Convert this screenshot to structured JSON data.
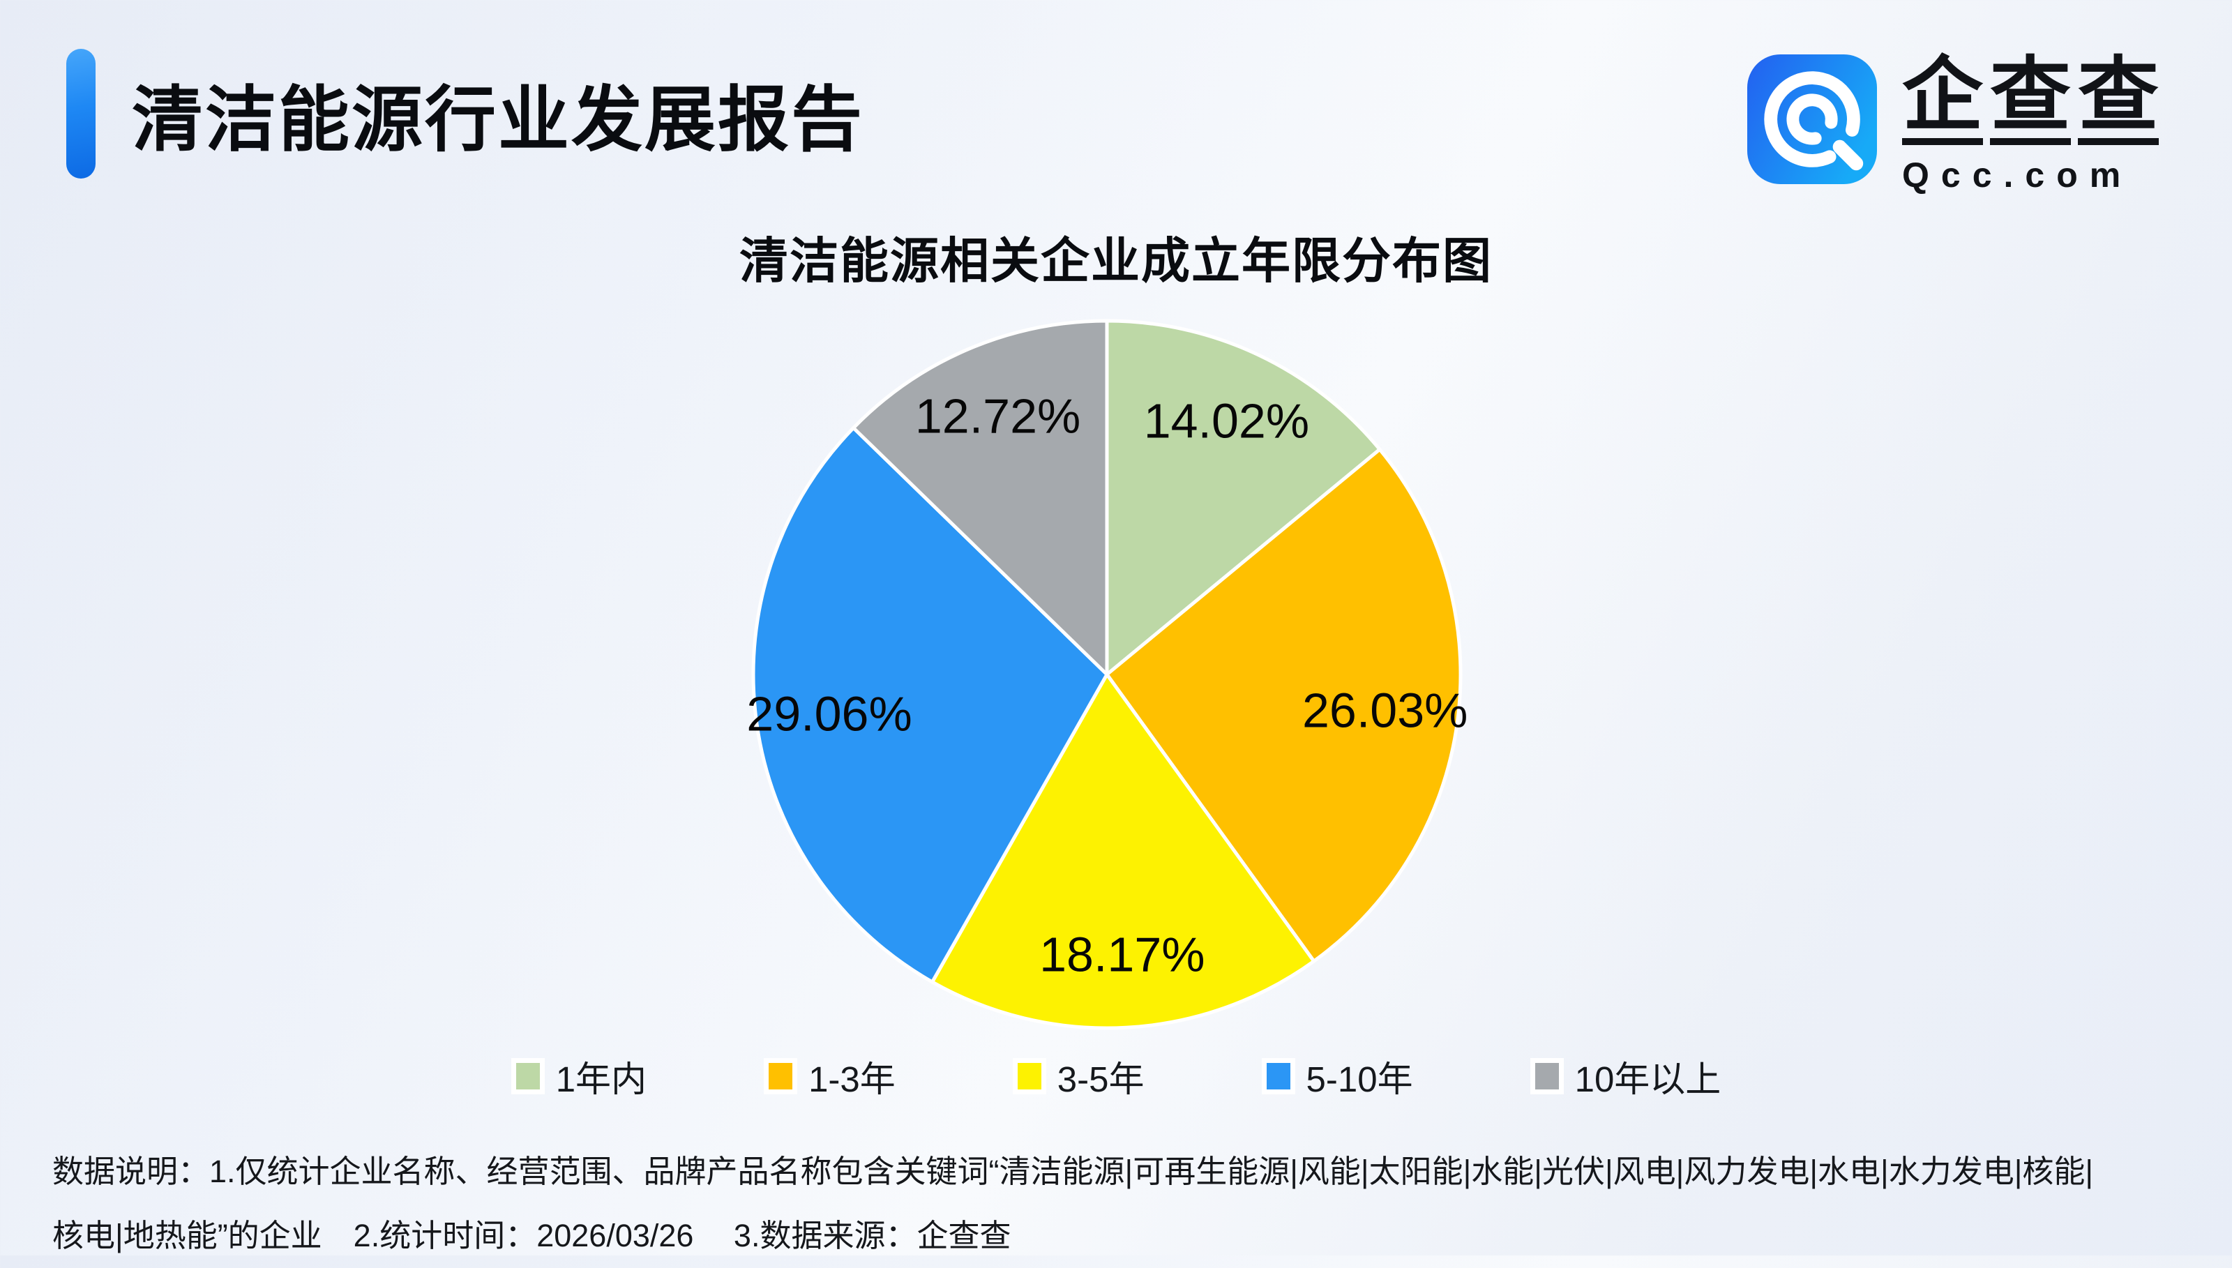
{
  "header": {
    "title": "清洁能源行业发展报告"
  },
  "logo": {
    "name": "企查查",
    "domain": "Qcc.com"
  },
  "chart_data": {
    "type": "pie",
    "title": "清洁能源相关企业成立年限分布图",
    "start_angle_deg": 0,
    "direction": "clockwise",
    "label_format": "percent_2dp",
    "legend_position": "bottom",
    "categories": [
      "1年内",
      "1-3年",
      "3-5年",
      "5-10年",
      "10年以上"
    ],
    "values": [
      14.02,
      26.03,
      18.17,
      29.06,
      12.72
    ],
    "slices": [
      {
        "label": "1年内",
        "value": 14.02,
        "display": "14.02%",
        "color": "#BDD8A6"
      },
      {
        "label": "1-3年",
        "value": 26.03,
        "display": "26.03%",
        "color": "#FFC000"
      },
      {
        "label": "3-5年",
        "value": 18.17,
        "display": "18.17%",
        "color": "#FDF201"
      },
      {
        "label": "5-10年",
        "value": 29.06,
        "display": "29.06%",
        "color": "#2B96F5"
      },
      {
        "label": "10年以上",
        "value": 12.72,
        "display": "12.72%",
        "color": "#A5A9AD"
      }
    ],
    "slice_border_color": "#ffffff",
    "label_color": "#070707"
  },
  "footer": {
    "line1": "数据说明：1.仅统计企业名称、经营范围、品牌产品名称包含关键词“清洁能源|可再生能源|风能|太阳能|水能|光伏|风电|风力发电|水电|水力发电|核能|",
    "line2": "核电|地热能”的企业　2.统计时间：2026/03/26　 3.数据来源：企查查"
  }
}
